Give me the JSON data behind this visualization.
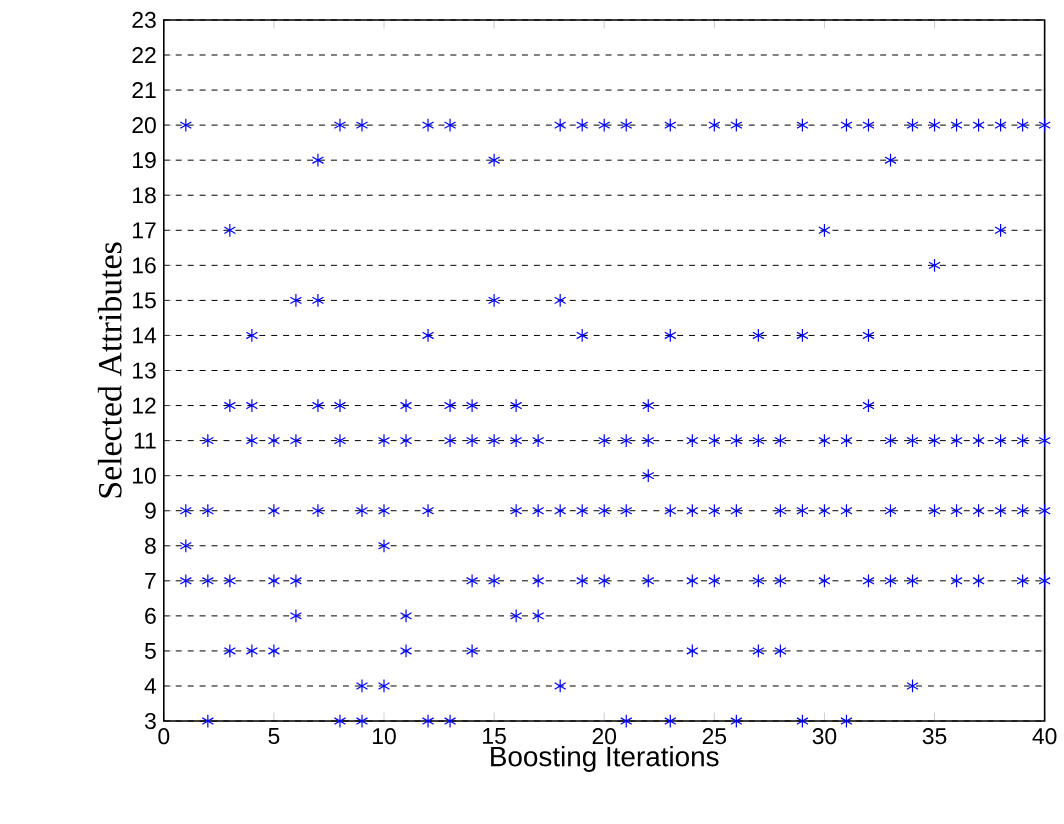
{
  "chart_data": {
    "type": "scatter",
    "xlabel": "Boosting Iterations",
    "ylabel": "Selected Attributes",
    "xlim": [
      0,
      40
    ],
    "xticks": [
      0,
      5,
      10,
      15,
      20,
      25,
      30,
      35,
      40
    ],
    "ylim": [
      3,
      23
    ],
    "yticks": [
      3,
      4,
      5,
      6,
      7,
      8,
      9,
      10,
      11,
      12,
      13,
      14,
      15,
      16,
      17,
      18,
      19,
      20,
      21,
      22,
      23
    ],
    "grid": "y",
    "marker": "cross",
    "series": [
      {
        "color": "#0000ff",
        "x": [
          1,
          8,
          9,
          12,
          13,
          18,
          19,
          20,
          21,
          23,
          25,
          26,
          29,
          31,
          32,
          34,
          35,
          36,
          37,
          38,
          39,
          40,
          7,
          15,
          33,
          3,
          30,
          38,
          35,
          6,
          7,
          15,
          18,
          4,
          12,
          19,
          23,
          27,
          29,
          32,
          3,
          4,
          7,
          8,
          11,
          13,
          14,
          16,
          22,
          32,
          2,
          4,
          5,
          6,
          8,
          10,
          11,
          13,
          14,
          15,
          16,
          17,
          20,
          21,
          22,
          24,
          25,
          26,
          27,
          28,
          30,
          31,
          33,
          34,
          35,
          36,
          37,
          38,
          39,
          40,
          22,
          1,
          2,
          5,
          7,
          9,
          10,
          12,
          16,
          17,
          18,
          19,
          20,
          21,
          23,
          24,
          25,
          26,
          28,
          29,
          30,
          31,
          33,
          35,
          36,
          37,
          38,
          39,
          40,
          1,
          10,
          1,
          2,
          3,
          5,
          6,
          14,
          15,
          17,
          19,
          20,
          22,
          24,
          25,
          27,
          28,
          30,
          32,
          33,
          34,
          36,
          37,
          39,
          40,
          6,
          11,
          16,
          17,
          3,
          4,
          5,
          11,
          14,
          24,
          27,
          28,
          9,
          10,
          18,
          34,
          2,
          8,
          9,
          12,
          13,
          21,
          23,
          26,
          29,
          31
        ],
        "values": [
          20,
          20,
          20,
          20,
          20,
          20,
          20,
          20,
          20,
          20,
          20,
          20,
          20,
          20,
          20,
          20,
          20,
          20,
          20,
          20,
          20,
          20,
          19,
          19,
          19,
          17,
          17,
          17,
          16,
          15,
          15,
          15,
          15,
          14,
          14,
          14,
          14,
          14,
          14,
          14,
          12,
          12,
          12,
          12,
          12,
          12,
          12,
          12,
          12,
          12,
          11,
          11,
          11,
          11,
          11,
          11,
          11,
          11,
          11,
          11,
          11,
          11,
          11,
          11,
          11,
          11,
          11,
          11,
          11,
          11,
          11,
          11,
          11,
          11,
          11,
          11,
          11,
          11,
          11,
          11,
          10,
          9,
          9,
          9,
          9,
          9,
          9,
          9,
          9,
          9,
          9,
          9,
          9,
          9,
          9,
          9,
          9,
          9,
          9,
          9,
          9,
          9,
          9,
          9,
          9,
          9,
          9,
          9,
          9,
          8,
          8,
          7,
          7,
          7,
          7,
          7,
          7,
          7,
          7,
          7,
          7,
          7,
          7,
          7,
          7,
          7,
          7,
          7,
          7,
          7,
          7,
          7,
          7,
          7,
          6,
          6,
          6,
          6,
          5,
          5,
          5,
          5,
          5,
          5,
          5,
          5,
          4,
          4,
          4,
          4,
          3,
          3,
          3,
          3,
          3,
          3,
          3,
          3,
          3,
          3
        ]
      }
    ]
  }
}
